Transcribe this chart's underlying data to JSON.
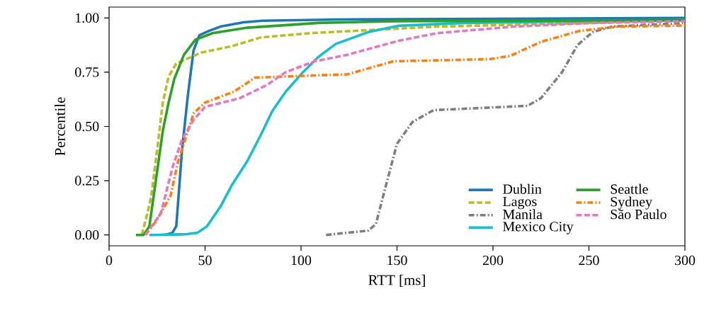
{
  "chart_data": {
    "type": "line",
    "xlabel": "RTT [ms]",
    "ylabel": "Percentile",
    "xlim": [
      0,
      300
    ],
    "ylim": [
      -0.05,
      1.05
    ],
    "xticks": [
      0,
      50,
      100,
      150,
      200,
      250,
      300
    ],
    "yticks": [
      {
        "value": 0,
        "label": "0.00"
      },
      {
        "value": 0.25,
        "label": "0.25"
      },
      {
        "value": 0.5,
        "label": "0.50"
      },
      {
        "value": 0.75,
        "label": "0.75"
      },
      {
        "value": 1,
        "label": "1.00"
      }
    ],
    "grid": false,
    "legend": "bottom right",
    "marker": "none",
    "series": [
      {
        "name": "Dublin",
        "color": "#1f77b4",
        "line_style": "solid",
        "x": [
          29,
          33,
          35,
          38,
          41,
          44,
          47,
          52,
          58,
          70,
          80,
          120,
          200,
          300
        ],
        "values": [
          0,
          0.01,
          0.04,
          0.39,
          0.64,
          0.85,
          0.92,
          0.94,
          0.96,
          0.98,
          0.987,
          0.993,
          0.996,
          1.0
        ]
      },
      {
        "name": "Lagos",
        "color": "#bcbd22",
        "line_style": "dashed",
        "x": [
          17,
          20,
          22,
          25,
          28,
          31,
          35,
          48,
          64,
          79,
          105,
          171,
          252,
          300
        ],
        "values": [
          0,
          0.1,
          0.18,
          0.39,
          0.61,
          0.73,
          0.79,
          0.84,
          0.87,
          0.91,
          0.93,
          0.96,
          0.977,
          0.99
        ]
      },
      {
        "name": "Manila",
        "color": "#7f7f7f",
        "line_style": "dashdot",
        "x": [
          113,
          135,
          139,
          144,
          150,
          158,
          169,
          218,
          225,
          236,
          244,
          252,
          262,
          300
        ],
        "values": [
          0,
          0.02,
          0.05,
          0.22,
          0.42,
          0.52,
          0.575,
          0.595,
          0.63,
          0.75,
          0.875,
          0.935,
          0.96,
          0.977
        ]
      },
      {
        "name": "Mexico City",
        "color": "#17becf",
        "line_style": "solid",
        "x": [
          21,
          40,
          46,
          51,
          58,
          64,
          72,
          79,
          85,
          92,
          101,
          109,
          118,
          135,
          151,
          185,
          300
        ],
        "values": [
          0,
          0.003,
          0.01,
          0.04,
          0.13,
          0.23,
          0.34,
          0.46,
          0.57,
          0.66,
          0.75,
          0.82,
          0.88,
          0.935,
          0.964,
          0.977,
          0.99
        ]
      },
      {
        "name": "Seattle",
        "color": "#2ca02c",
        "line_style": "solid",
        "x": [
          14,
          18,
          21,
          25,
          28,
          31,
          34,
          39,
          45,
          54,
          72,
          109,
          150,
          300
        ],
        "values": [
          0,
          0,
          0.04,
          0.29,
          0.48,
          0.61,
          0.72,
          0.83,
          0.9,
          0.93,
          0.955,
          0.977,
          0.985,
          0.99
        ]
      },
      {
        "name": "Sydney",
        "color": "#ff7f0e",
        "line_style": "dashdot",
        "x": [
          19,
          25,
          32,
          36,
          40,
          44,
          50,
          65,
          76,
          107,
          124,
          148,
          198,
          209,
          225,
          245,
          265,
          300
        ],
        "values": [
          0,
          0.07,
          0.18,
          0.34,
          0.45,
          0.56,
          0.61,
          0.66,
          0.725,
          0.735,
          0.74,
          0.8,
          0.81,
          0.825,
          0.89,
          0.94,
          0.96,
          0.965
        ]
      },
      {
        "name": "São Paulo",
        "color": "#e377c2",
        "line_style": "dashed",
        "x": [
          19,
          27,
          33,
          38,
          44,
          50,
          68,
          82,
          92,
          107,
          124,
          151,
          171,
          211,
          252,
          300
        ],
        "values": [
          0,
          0.1,
          0.31,
          0.44,
          0.53,
          0.59,
          0.63,
          0.69,
          0.75,
          0.8,
          0.83,
          0.895,
          0.93,
          0.96,
          0.977,
          0.985
        ]
      }
    ]
  }
}
